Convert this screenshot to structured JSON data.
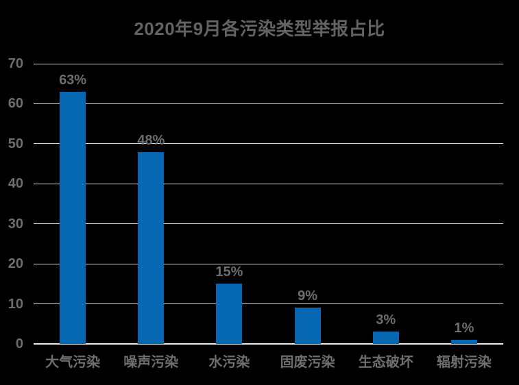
{
  "page": {
    "background_color": "#000000"
  },
  "chart_data": {
    "type": "bar",
    "title": "2020年9月各污染类型举报占比",
    "categories": [
      "大气污染",
      "噪声污染",
      "水污染",
      "固废污染",
      "生态破坏",
      "辐射污染"
    ],
    "values": [
      63,
      48,
      15,
      9,
      3,
      1
    ],
    "data_labels": [
      "63%",
      "48%",
      "15%",
      "9%",
      "3%",
      "1%"
    ],
    "xlabel": "",
    "ylabel": "",
    "y_ticks": [
      0,
      10,
      20,
      30,
      40,
      50,
      60,
      70
    ],
    "ylim": [
      0,
      70
    ],
    "grid": true,
    "legend": "none",
    "colors": {
      "bar": "#0667b2",
      "title_text": "#636363",
      "label_text": "#6e6e6e",
      "gridline": "#d6d6d6",
      "axis_line": "#ededed",
      "background": "#000000"
    }
  }
}
